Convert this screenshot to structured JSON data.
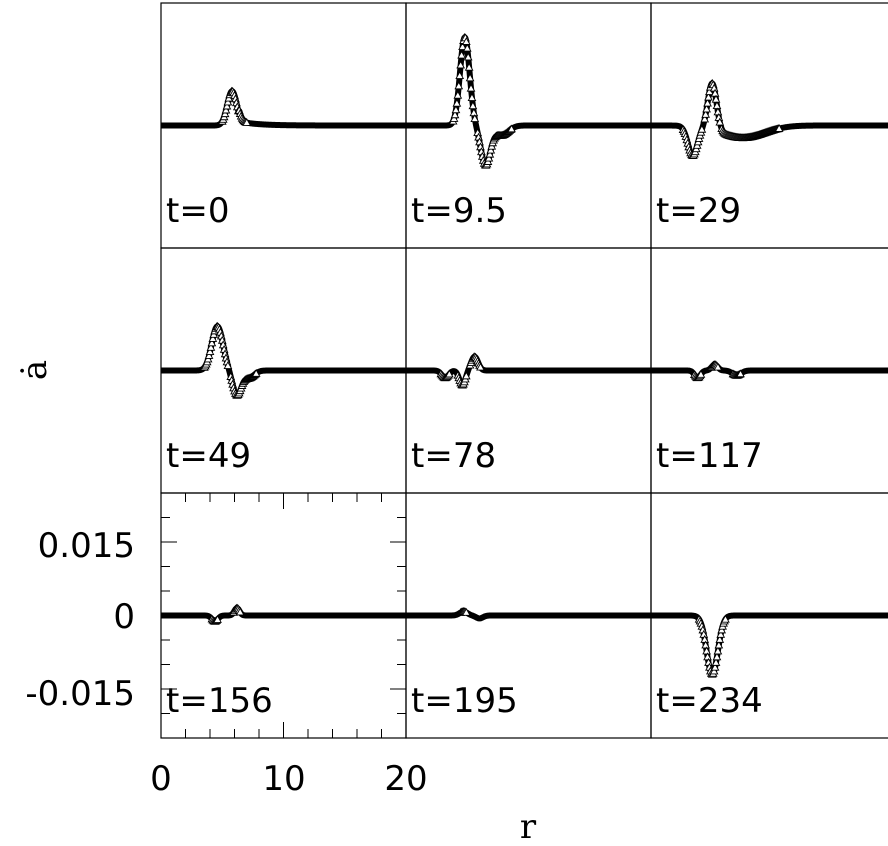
{
  "chart_data": {
    "type": "scatter",
    "ylabel": "ȧ",
    "xlabel": "r",
    "xlim": [
      0,
      20
    ],
    "ylim": [
      -0.025,
      0.025
    ],
    "grid": false,
    "layout": "3x3 small multiples, shared axes",
    "x_ticks": [
      "0",
      "10",
      "20"
    ],
    "y_ticks": [
      "0.015",
      "0",
      "-0.015"
    ],
    "marker": "open-triangle",
    "panels": [
      {
        "label": "t=0",
        "events": [
          {
            "center": 5.8,
            "amp": 0.007,
            "width": 0.55,
            "tail": 1.5
          }
        ]
      },
      {
        "label": "t=9.5",
        "events": [
          {
            "center": 4.8,
            "amp": 0.018,
            "width": 0.55
          },
          {
            "center": 6.5,
            "amp": -0.008,
            "width": 0.55
          },
          {
            "center": 7.8,
            "amp": -0.002,
            "width": 0.8
          }
        ]
      },
      {
        "label": "t=29",
        "events": [
          {
            "center": 5.0,
            "amp": 0.0095,
            "width": 0.5
          },
          {
            "center": 3.4,
            "amp": -0.006,
            "width": 0.55
          },
          {
            "center": 7.5,
            "amp": -0.0025,
            "width": 2.5
          }
        ]
      },
      {
        "label": "t=49",
        "events": [
          {
            "center": 4.6,
            "amp": 0.009,
            "width": 0.65
          },
          {
            "center": 6.2,
            "amp": -0.005,
            "width": 0.5
          },
          {
            "center": 7.2,
            "amp": -0.0015,
            "width": 0.6
          }
        ]
      },
      {
        "label": "t=78",
        "events": [
          {
            "center": 3.2,
            "amp": -0.0015,
            "width": 0.4
          },
          {
            "center": 4.6,
            "amp": -0.003,
            "width": 0.35
          },
          {
            "center": 5.6,
            "amp": 0.0028,
            "width": 0.4
          }
        ]
      },
      {
        "label": "t=117",
        "events": [
          {
            "center": 3.8,
            "amp": -0.0015,
            "width": 0.35
          },
          {
            "center": 5.2,
            "amp": 0.0012,
            "width": 0.35
          },
          {
            "center": 7.0,
            "amp": -0.001,
            "width": 0.5
          }
        ]
      },
      {
        "label": "t=156",
        "events": [
          {
            "center": 4.4,
            "amp": -0.0012,
            "width": 0.35
          },
          {
            "center": 6.2,
            "amp": 0.0015,
            "width": 0.3
          }
        ]
      },
      {
        "label": "t=195",
        "events": [
          {
            "center": 4.7,
            "amp": 0.0008,
            "width": 0.45
          },
          {
            "center": 6.0,
            "amp": -0.0006,
            "width": 0.4
          }
        ]
      },
      {
        "label": "t=234",
        "events": [
          {
            "center": 5.0,
            "amp": -0.012,
            "width": 0.65
          }
        ]
      }
    ]
  }
}
